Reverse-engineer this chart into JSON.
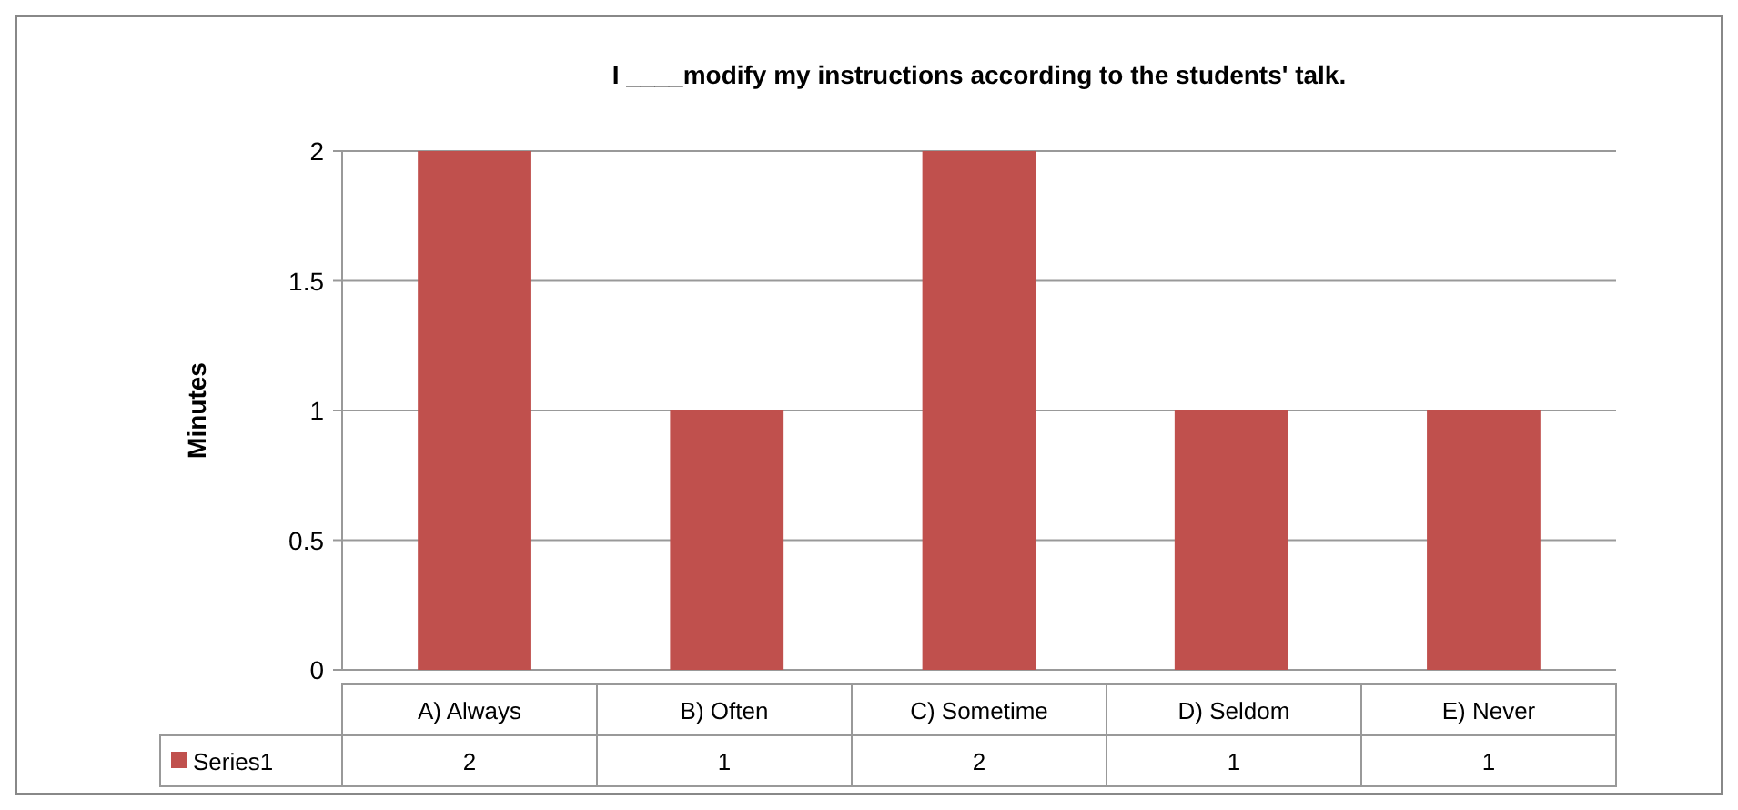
{
  "chart_data": {
    "type": "bar",
    "title": "I ____modify my instructions according to the students' talk.",
    "ylabel": "Minutes",
    "categories": [
      "A) Always",
      "B) Often",
      "C) Sometime",
      "D) Seldom",
      "E) Never"
    ],
    "series": [
      {
        "name": "Series1",
        "color": "#c0504d",
        "values": [
          2,
          1,
          2,
          1,
          1
        ]
      }
    ],
    "ylim": [
      0,
      2
    ],
    "yticks": [
      0,
      0.5,
      1,
      1.5,
      2
    ],
    "grid": "y",
    "data_labels": true,
    "legend": "bottom"
  }
}
